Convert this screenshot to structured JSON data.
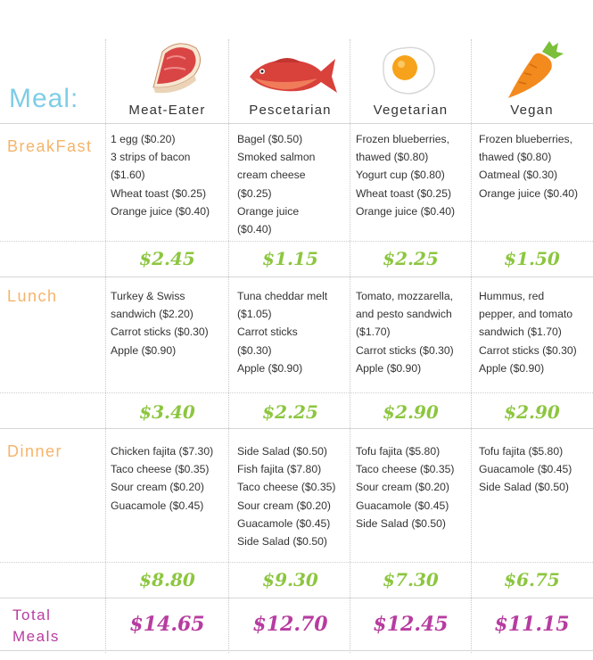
{
  "header": {
    "meal_label": "Meal:",
    "columns": [
      "Meat-Eater",
      "Pescetarian",
      "Vegetarian",
      "Vegan"
    ]
  },
  "rows": [
    {
      "label": "BreakFast",
      "cells": [
        [
          "1 egg ($0.20)",
          "3 strips of bacon",
          "($1.60)",
          "Wheat toast ($0.25)",
          "Orange juice ($0.40)"
        ],
        [
          "Bagel ($0.50)",
          "Smoked salmon",
          "cream cheese",
          "($0.25)",
          "Orange juice",
          "($0.40)"
        ],
        [
          "Frozen blueberries,",
          "thawed ($0.80)",
          "Yogurt cup ($0.80)",
          "Wheat toast ($0.25)",
          "Orange juice ($0.40)"
        ],
        [
          "Frozen blueberries,",
          "thawed ($0.80)",
          "Oatmeal ($0.30)",
          "Orange juice ($0.40)"
        ]
      ],
      "prices": [
        "$2.45",
        "$1.15",
        "$2.25",
        "$1.50"
      ]
    },
    {
      "label": "Lunch",
      "cells": [
        [
          "Turkey & Swiss",
          "sandwich ($2.20)",
          "Carrot sticks ($0.30)",
          "Apple ($0.90)"
        ],
        [
          "Tuna cheddar melt",
          "($1.05)",
          "Carrot sticks",
          "($0.30)",
          "Apple ($0.90)"
        ],
        [
          "Tomato, mozzarella,",
          "and pesto sandwich",
          "($1.70)",
          "Carrot sticks ($0.30)",
          "Apple ($0.90)"
        ],
        [
          "Hummus, red",
          "pepper, and tomato",
          "sandwich ($1.70)",
          "Carrot sticks ($0.30)",
          "Apple ($0.90)"
        ]
      ],
      "prices": [
        "$3.40",
        "$2.25",
        "$2.90",
        "$2.90"
      ]
    },
    {
      "label": "Dinner",
      "cells": [
        [
          "Chicken fajita ($7.30)",
          "Taco cheese ($0.35)",
          "Sour cream ($0.20)",
          "Guacamole ($0.45)"
        ],
        [
          "Side Salad ($0.50)",
          "Fish fajita ($7.80)",
          "Taco cheese ($0.35)",
          "Sour cream ($0.20)",
          "Guacamole ($0.45)",
          "Side Salad ($0.50)"
        ],
        [
          "Tofu fajita ($5.80)",
          "Taco cheese ($0.35)",
          "Sour cream ($0.20)",
          "Guacamole ($0.45)",
          "Side Salad ($0.50)"
        ],
        [
          "Tofu fajita ($5.80)",
          "Guacamole ($0.45)",
          "Side Salad ($0.50)"
        ]
      ],
      "prices": [
        "$8.80",
        "$9.30",
        "$7.30",
        "$6.75"
      ]
    }
  ],
  "totals": {
    "label_line1": "Total",
    "label_line2": "Meals",
    "values": [
      "$14.65",
      "$12.70",
      "$12.45",
      "$11.15"
    ]
  },
  "icons": [
    "steak-icon",
    "fish-icon",
    "egg-icon",
    "carrot-icon"
  ],
  "colors": {
    "meal_label": "#7ecde6",
    "row_label": "#f5b46a",
    "price": "#8cc63f",
    "total": "#b73ca0"
  }
}
